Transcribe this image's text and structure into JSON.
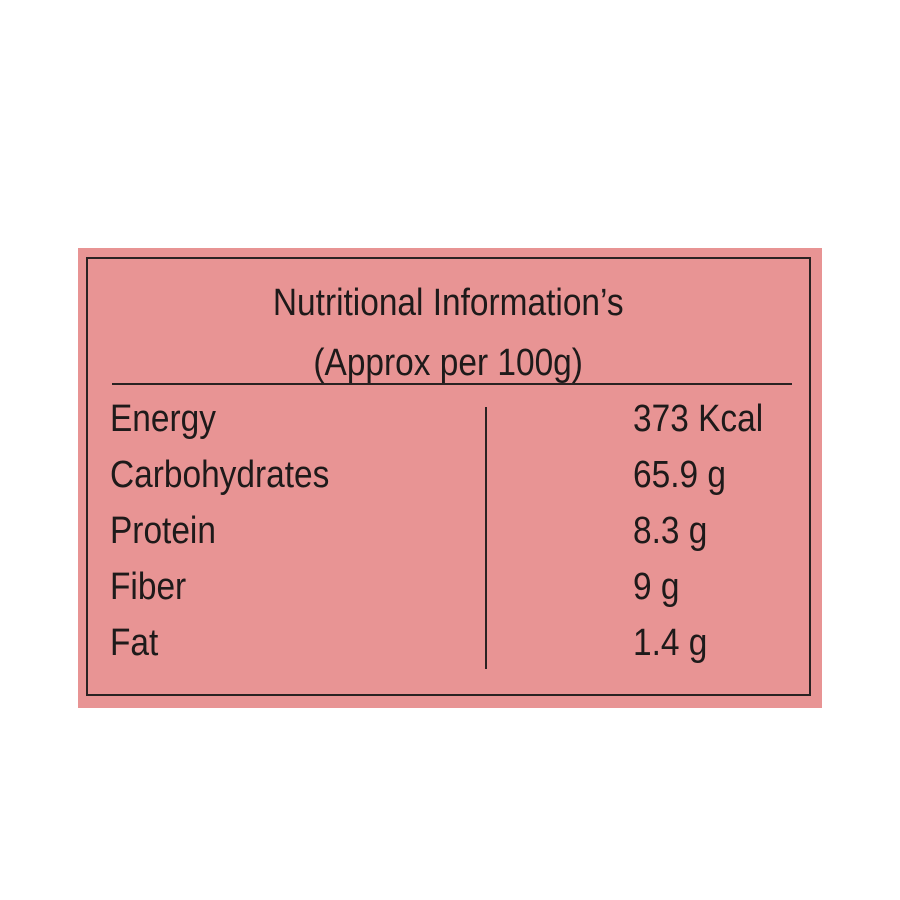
{
  "colors": {
    "background": "#e89494",
    "text": "#1e1a1a",
    "border": "#2a2222"
  },
  "title": {
    "line1": "Nutritional Information’s",
    "line2": "(Approx per 100g)"
  },
  "rows": [
    {
      "label": "Energy",
      "value": "373 Kcal"
    },
    {
      "label": "Carbohydrates",
      "value": "65.9 g"
    },
    {
      "label": "Protein",
      "value": "8.3 g"
    },
    {
      "label": "Fiber",
      "value": "9 g"
    },
    {
      "label": "Fat",
      "value": "1.4 g"
    }
  ]
}
